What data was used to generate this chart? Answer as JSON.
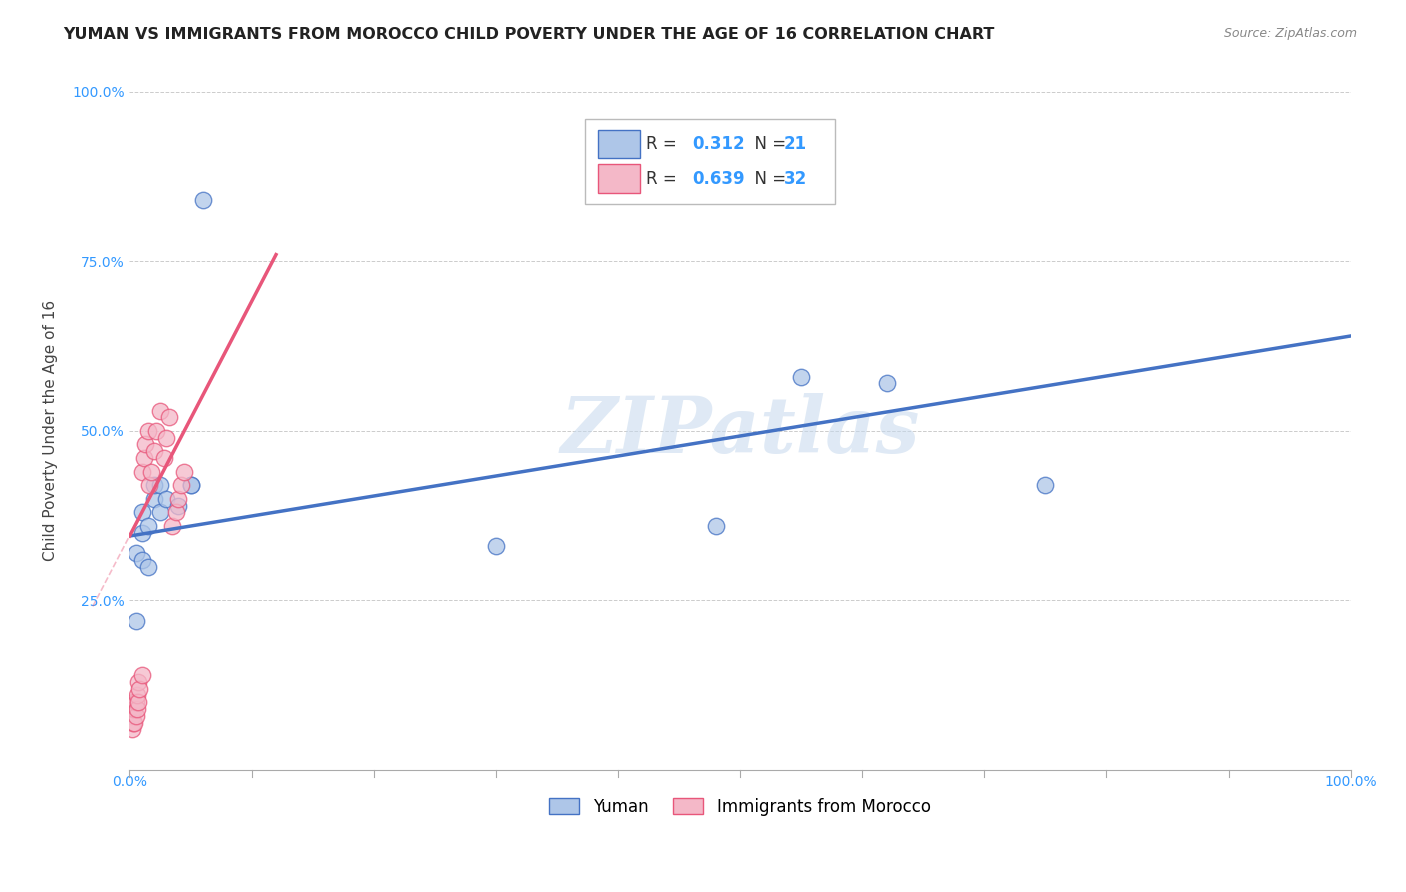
{
  "title": "YUMAN VS IMMIGRANTS FROM MOROCCO CHILD POVERTY UNDER THE AGE OF 16 CORRELATION CHART",
  "source": "Source: ZipAtlas.com",
  "ylabel": "Child Poverty Under the Age of 16",
  "xlabel": "",
  "xlim": [
    0.0,
    1.0
  ],
  "ylim": [
    0.0,
    1.0
  ],
  "watermark": "ZIPatlas",
  "yuman_x": [
    0.005,
    0.005,
    0.01,
    0.01,
    0.01,
    0.015,
    0.015,
    0.02,
    0.02,
    0.025,
    0.025,
    0.03,
    0.04,
    0.05,
    0.05,
    0.06,
    0.3,
    0.48,
    0.55,
    0.62,
    0.75
  ],
  "yuman_y": [
    0.32,
    0.22,
    0.31,
    0.35,
    0.38,
    0.3,
    0.36,
    0.4,
    0.42,
    0.38,
    0.42,
    0.4,
    0.39,
    0.42,
    0.42,
    0.84,
    0.33,
    0.36,
    0.58,
    0.57,
    0.42
  ],
  "morocco_x": [
    0.002,
    0.002,
    0.003,
    0.003,
    0.003,
    0.004,
    0.004,
    0.005,
    0.005,
    0.006,
    0.006,
    0.007,
    0.007,
    0.008,
    0.01,
    0.01,
    0.012,
    0.013,
    0.015,
    0.016,
    0.018,
    0.02,
    0.022,
    0.025,
    0.028,
    0.03,
    0.032,
    0.035,
    0.038,
    0.04,
    0.042,
    0.045
  ],
  "morocco_y": [
    0.06,
    0.08,
    0.07,
    0.09,
    0.1,
    0.07,
    0.09,
    0.08,
    0.1,
    0.09,
    0.11,
    0.1,
    0.13,
    0.12,
    0.14,
    0.44,
    0.46,
    0.48,
    0.5,
    0.42,
    0.44,
    0.47,
    0.5,
    0.53,
    0.46,
    0.49,
    0.52,
    0.36,
    0.38,
    0.4,
    0.42,
    0.44
  ],
  "yuman_color": "#aec6e8",
  "morocco_color": "#f4b8c8",
  "yuman_line_color": "#4472c4",
  "morocco_line_color": "#e8567a",
  "yuman_line_start_x": 0.0,
  "yuman_line_end_x": 1.0,
  "yuman_line_start_y": 0.345,
  "yuman_line_end_y": 0.64,
  "morocco_line_start_x": 0.0,
  "morocco_line_end_x": 0.12,
  "morocco_line_start_y": 0.345,
  "morocco_line_end_y": 0.76,
  "R_yuman": 0.312,
  "N_yuman": 21,
  "R_morocco": 0.639,
  "N_morocco": 32,
  "legend_label_yuman": "Yuman",
  "legend_label_morocco": "Immigrants from Morocco",
  "title_fontsize": 11.5,
  "axis_label_fontsize": 11,
  "tick_fontsize": 10,
  "legend_fontsize": 12
}
